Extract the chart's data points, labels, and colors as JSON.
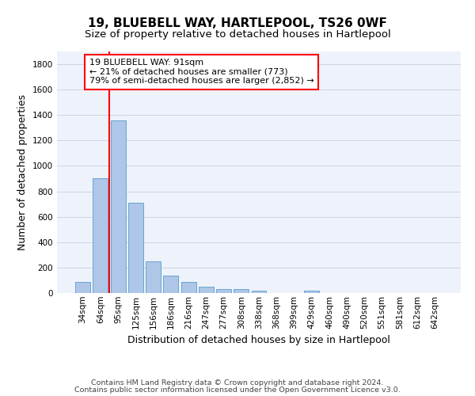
{
  "title": "19, BLUEBELL WAY, HARTLEPOOL, TS26 0WF",
  "subtitle": "Size of property relative to detached houses in Hartlepool",
  "xlabel": "Distribution of detached houses by size in Hartlepool",
  "ylabel": "Number of detached properties",
  "categories": [
    "34sqm",
    "64sqm",
    "95sqm",
    "125sqm",
    "156sqm",
    "186sqm",
    "216sqm",
    "247sqm",
    "277sqm",
    "308sqm",
    "338sqm",
    "368sqm",
    "399sqm",
    "429sqm",
    "460sqm",
    "490sqm",
    "520sqm",
    "551sqm",
    "581sqm",
    "612sqm",
    "642sqm"
  ],
  "values": [
    85,
    905,
    1360,
    710,
    248,
    140,
    85,
    52,
    33,
    30,
    18,
    0,
    0,
    18,
    0,
    0,
    0,
    0,
    0,
    0,
    0
  ],
  "bar_color": "#aec6e8",
  "bar_edge_color": "#5a9ec9",
  "vline_x_index": 2,
  "vline_color": "red",
  "ylim": [
    0,
    1900
  ],
  "yticks": [
    0,
    200,
    400,
    600,
    800,
    1000,
    1200,
    1400,
    1600,
    1800
  ],
  "annotation_text": "19 BLUEBELL WAY: 91sqm\n← 21% of detached houses are smaller (773)\n79% of semi-detached houses are larger (2,852) →",
  "annotation_box_color": "white",
  "annotation_box_edge_color": "red",
  "footer_line1": "Contains HM Land Registry data © Crown copyright and database right 2024.",
  "footer_line2": "Contains public sector information licensed under the Open Government Licence v3.0.",
  "background_color": "#eef2fb",
  "grid_color": "#c8cfe0",
  "title_fontsize": 11,
  "subtitle_fontsize": 9.5,
  "xlabel_fontsize": 9,
  "ylabel_fontsize": 9,
  "tick_fontsize": 7.5,
  "annotation_fontsize": 8,
  "footer_fontsize": 6.8
}
